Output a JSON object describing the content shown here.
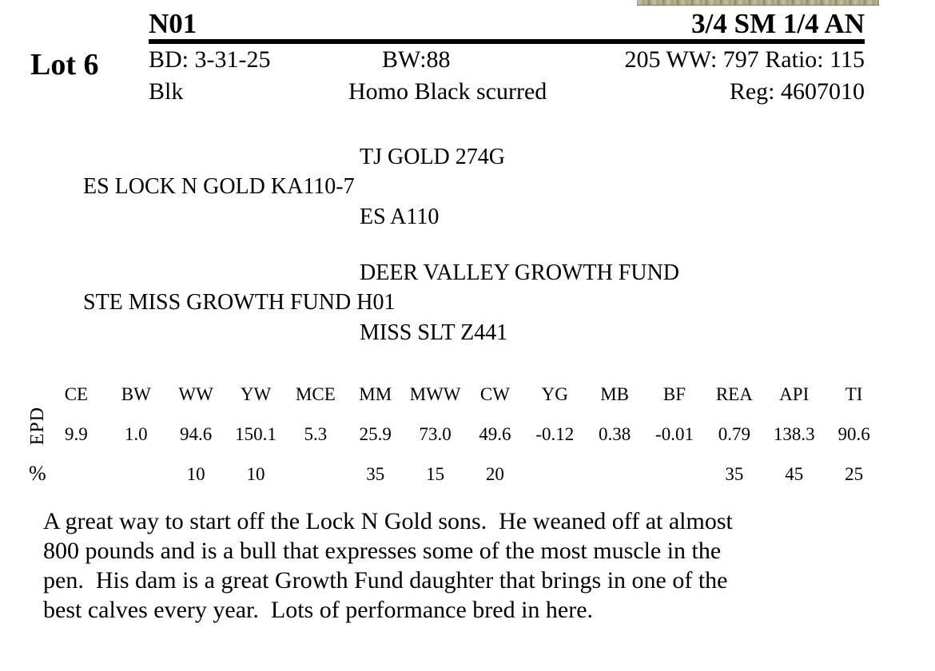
{
  "page": {
    "lot_label": "Lot 6"
  },
  "colors": {
    "text": "#000000",
    "background": "#ffffff",
    "photo_strip_tan": "#b5ab85"
  },
  "header": {
    "tattoo": "N01",
    "breed_composition": "3/4 SM 1/4 AN",
    "row1": {
      "birth_date": "BD: 3-31-25",
      "birth_weight": "BW:88",
      "weaning": "205 WW: 797 Ratio: 115"
    },
    "row2": {
      "color": "Blk",
      "coat_horn": "Homo Black scurred",
      "registration": "Reg: 4607010"
    }
  },
  "pedigree": {
    "sire_sire": "TJ GOLD 274G",
    "sire": "ES LOCK N GOLD KA110-7",
    "sire_dam": "ES A110",
    "dam_sire": "DEER VALLEY GROWTH FUND",
    "dam": "STE MISS GROWTH FUND H01",
    "dam_dam": "MISS SLT Z441"
  },
  "epd": {
    "row_label": "EPD",
    "percent_label": "%",
    "headers": [
      "CE",
      "BW",
      "WW",
      "YW",
      "MCE",
      "MM",
      "MWW",
      "CW",
      "YG",
      "MB",
      "BF",
      "REA",
      "API",
      "TI"
    ],
    "values": [
      "9.9",
      "1.0",
      "94.6",
      "150.1",
      "5.3",
      "25.9",
      "73.0",
      "49.6",
      "-0.12",
      "0.38",
      "-0.01",
      "0.79",
      "138.3",
      "90.6"
    ],
    "percentiles": [
      "",
      "",
      "10",
      "10",
      "",
      "35",
      "15",
      "20",
      "",
      "",
      "",
      "35",
      "45",
      "25"
    ]
  },
  "description": "A great way to start off the Lock N Gold sons.  He weaned off at almost\n800 pounds and is a bull that expresses some of the most muscle in the\npen.  His dam is a great Growth Fund daughter that brings in one of the\nbest calves every year.  Lots of performance bred in here."
}
